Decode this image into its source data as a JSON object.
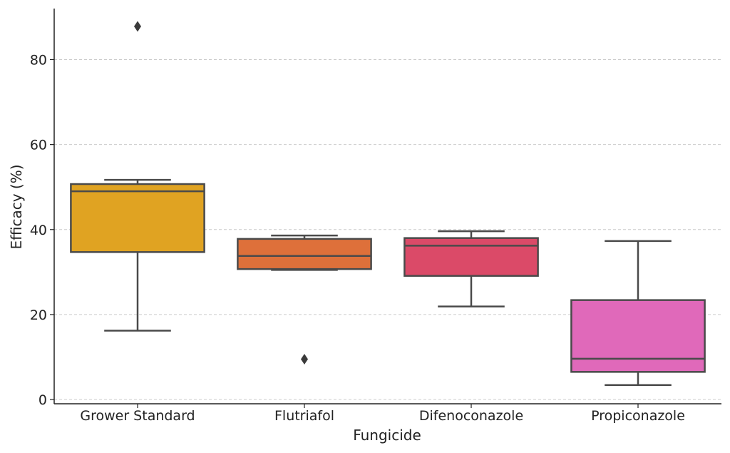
{
  "chart_data": {
    "type": "box",
    "xlabel": "Fungicide",
    "ylabel": "Efficacy (%)",
    "ylim": [
      -1,
      92
    ],
    "yticks": [
      0,
      20,
      40,
      60,
      80
    ],
    "grid": "y-dashed",
    "categories": [
      "Grower Standard",
      "Flutriafol",
      "Difenoconazole",
      "Propiconazole"
    ],
    "boxes": [
      {
        "name": "Grower Standard",
        "whisker_low": 16.2,
        "q1": 34.7,
        "median": 49.0,
        "q3": 50.7,
        "whisker_high": 51.7,
        "outliers": [
          87.8
        ],
        "color": "#E0A322"
      },
      {
        "name": "Flutriafol",
        "whisker_low": 30.5,
        "q1": 30.7,
        "median": 33.8,
        "q3": 37.8,
        "whisker_high": 38.6,
        "outliers": [
          9.5
        ],
        "color": "#DE703A"
      },
      {
        "name": "Difenoconazole",
        "whisker_low": 21.9,
        "q1": 29.1,
        "median": 36.2,
        "q3": 38.0,
        "whisker_high": 39.6,
        "outliers": [],
        "color": "#DB4A68"
      },
      {
        "name": "Propiconazole",
        "whisker_low": 3.4,
        "q1": 6.5,
        "median": 9.6,
        "q3": 23.4,
        "whisker_high": 37.3,
        "outliers": [],
        "color": "#E069BA"
      }
    ],
    "line_color": "#4a4a4a",
    "grid_color": "#cccccc"
  }
}
